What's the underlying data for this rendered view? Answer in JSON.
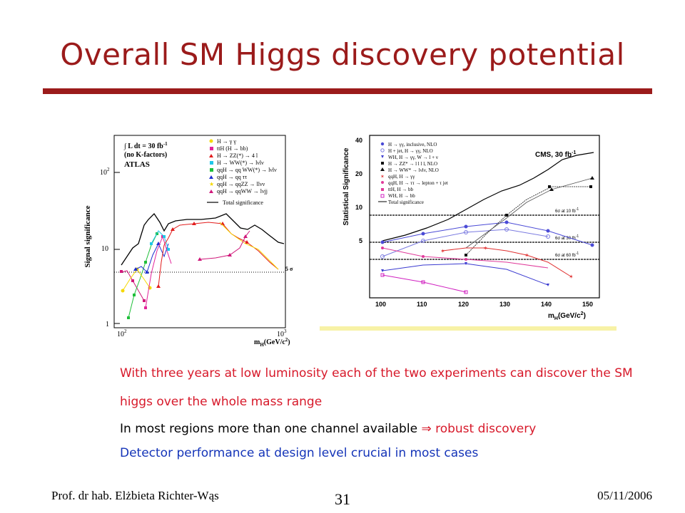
{
  "slide": {
    "title": "Overall SM Higgs discovery potential",
    "bullets": [
      {
        "text": "With three years at low luminosity each of the two experiments can discover the SM",
        "color": "#d7192a"
      },
      {
        "text": "higgs over the whole mass range",
        "color": "#d7192a"
      },
      {
        "text": "In most regions more than one channel available ⇒ robust discovery",
        "color": "#000000",
        "highlight": "⇒ robust discovery",
        "highlight_color": "#d7192a"
      },
      {
        "text": "Detector performance at design level crucial in most cases",
        "color": "#1434b8"
      }
    ],
    "footer": {
      "author": "Prof. dr hab. Elżbieta Richter-Wąs",
      "page": "31",
      "date": "05/11/2006"
    }
  },
  "atlas": {
    "ylabel": "Signal significance",
    "lumi_line1": "∫ L dt = 30 fb",
    "lumi_sup": "-1",
    "lumi_line2": "(no K-factors)",
    "experiment": "ATLAS",
    "yticks": [
      "10",
      "10",
      "1"
    ],
    "ytick_sup": "2",
    "xticks": [
      "10",
      "10"
    ],
    "xtick_sups": [
      "2",
      "3"
    ],
    "xlabel": "m",
    "xlabel_sub": "H",
    "xlabel_unit": "(GeV/c",
    "xlabel_unit_sup": "2",
    "sigma_label": "5 σ",
    "legend": [
      {
        "label": "H → γ γ",
        "color": "#f5d800",
        "marker": "circle"
      },
      {
        "label": "ttH (H → bb)",
        "color": "#e2239a",
        "marker": "square"
      },
      {
        "label": "H → ZZ(*) → 4 l",
        "color": "#e21c1c",
        "marker": "triangle"
      },
      {
        "label": "H → WW(*) → lνlν",
        "color": "#20c6e8",
        "marker": "square"
      },
      {
        "label": "qqH → qq WW(*) → lνlν",
        "color": "#1fbf3a",
        "marker": "square"
      },
      {
        "label": "qqH → qq ττ",
        "color": "#1c2fd0",
        "marker": "triangle"
      },
      {
        "label": "qqH → qqZZ → llνν",
        "color": "#f5d800",
        "marker": "star"
      },
      {
        "label": "qqH → qqWW → lνjj",
        "color": "#d0187a",
        "marker": "triangle"
      }
    ],
    "total_label": "Total significance"
  },
  "cms": {
    "ylabel": "Statistical Significance",
    "yticks": [
      "40",
      "20",
      "10",
      "5"
    ],
    "xticks": [
      "100",
      "110",
      "120",
      "130",
      "140",
      "150"
    ],
    "xlabel": "m",
    "xlabel_sub": "H",
    "xlabel_unit": "(GeV/c",
    "xlabel_unit_sup": "2",
    "xlabel_close": ")",
    "lumi": "CMS, 30 fb",
    "lumi_sup": "-1",
    "sigma_lines": [
      {
        "label": "6σ at 10 fb",
        "sup": "-1"
      },
      {
        "label": "6σ at 30 fb",
        "sup": "-1"
      },
      {
        "label": "6σ at 60 fb",
        "sup": "-1"
      }
    ],
    "legend": [
      {
        "label": "H → γγ, inclusive, NLO",
        "color": "#4a4ad6"
      },
      {
        "label": "H + jet, H → γγ, NLO",
        "color": "#7a7ae0"
      },
      {
        "label": "WH, H → γγ, W → l + ν",
        "color": "#3a3ad0"
      },
      {
        "label": "H → ZZ* → l l l l, NLO",
        "color": "#111111"
      },
      {
        "label": "H → WW* → lνlν, NLO",
        "color": "#111111"
      },
      {
        "label": "qqH, H → γγ",
        "color": "#e03030"
      },
      {
        "label": "qqH, H → ττ → lepton + τ jet",
        "color": "#e03a9a"
      },
      {
        "label": "ttH, H → bb",
        "color": "#e03a9a"
      },
      {
        "label": "WH, H → bb",
        "color": "#d020c0"
      }
    ],
    "total_label": "Total significance"
  }
}
